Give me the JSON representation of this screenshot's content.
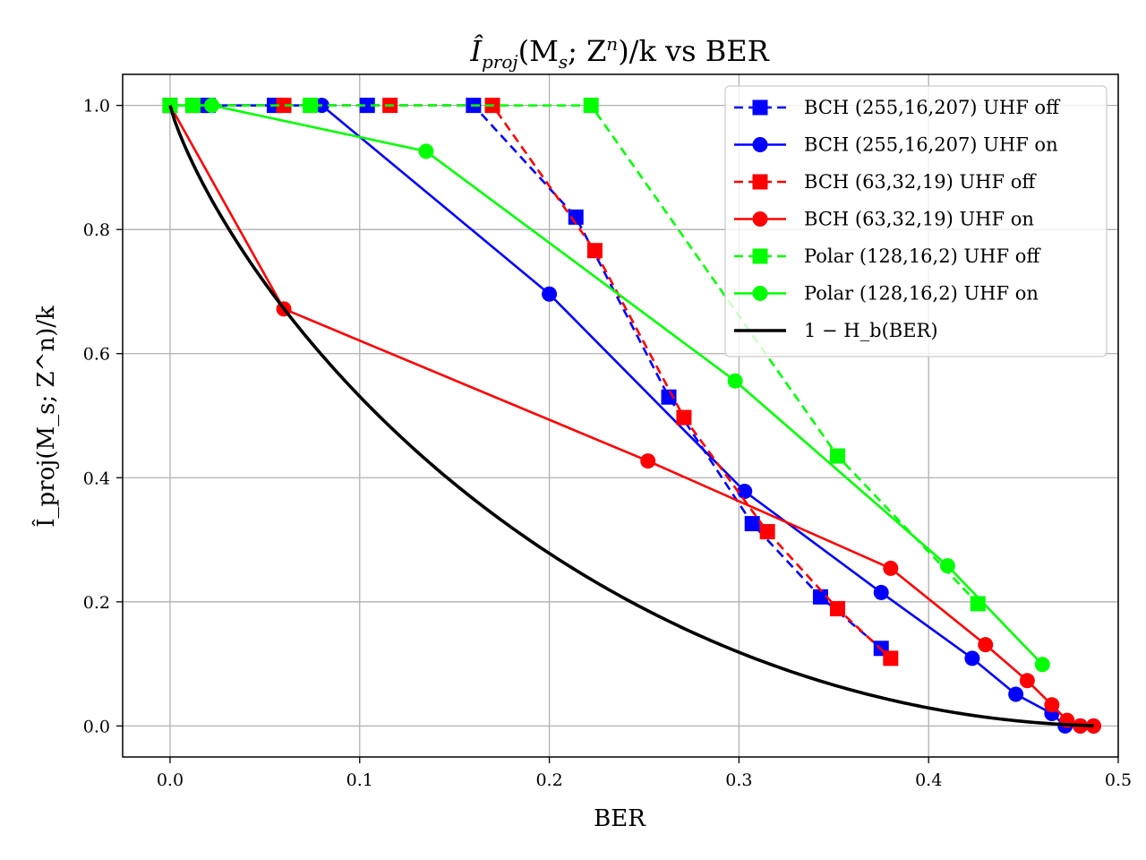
{
  "chart_data": {
    "type": "line",
    "title": "Î_proj(M_s; Z^n)/k vs BER",
    "title_parts": {
      "symbol": "Î",
      "sub": "proj",
      "args": "(M",
      "args_sub": "s",
      "args_mid": "; Z",
      "args_sup": "n",
      "args_end": ")/k",
      "suffix": " vs BER"
    },
    "xlabel": "BER",
    "ylabel": "Î_proj(M_s; Z^n)/k",
    "xlim": [
      -0.025,
      0.5
    ],
    "ylim": [
      -0.05,
      1.05
    ],
    "xticks": [
      0.0,
      0.1,
      0.2,
      0.3,
      0.4,
      0.5
    ],
    "yticks": [
      0.0,
      0.2,
      0.4,
      0.6,
      0.8,
      1.0
    ],
    "xtick_labels": [
      "0.0",
      "0.1",
      "0.2",
      "0.3",
      "0.4",
      "0.5"
    ],
    "ytick_labels": [
      "0.0",
      "0.2",
      "0.4",
      "0.6",
      "0.8",
      "1.0"
    ],
    "grid": true,
    "legend_position": "top-right",
    "series": [
      {
        "name": "BCH (255,16,207) UHF off",
        "color": "#0000ff",
        "dashed": true,
        "marker": "square",
        "points": [
          [
            0.0,
            1.0
          ],
          [
            0.02,
            1.0
          ],
          [
            0.055,
            1.0
          ],
          [
            0.104,
            1.0
          ],
          [
            0.16,
            1.0
          ],
          [
            0.214,
            0.82
          ],
          [
            0.263,
            0.53
          ],
          [
            0.307,
            0.326
          ],
          [
            0.343,
            0.208
          ],
          [
            0.375,
            0.125
          ]
        ]
      },
      {
        "name": "BCH (255,16,207) UHF on",
        "color": "#0000ff",
        "dashed": false,
        "marker": "circle",
        "points": [
          [
            0.0,
            1.0
          ],
          [
            0.018,
            1.0
          ],
          [
            0.08,
            1.0
          ],
          [
            0.2,
            0.696
          ],
          [
            0.303,
            0.378
          ],
          [
            0.375,
            0.215
          ],
          [
            0.423,
            0.109
          ],
          [
            0.446,
            0.051
          ],
          [
            0.465,
            0.02
          ],
          [
            0.472,
            0.0
          ],
          [
            0.48,
            0.0
          ],
          [
            0.487,
            0.0
          ]
        ]
      },
      {
        "name": "BCH (63,32,19) UHF off",
        "color": "#ff0000",
        "dashed": true,
        "marker": "square",
        "points": [
          [
            0.0,
            1.0
          ],
          [
            0.012,
            1.0
          ],
          [
            0.06,
            1.0
          ],
          [
            0.116,
            1.0
          ],
          [
            0.17,
            1.0
          ],
          [
            0.224,
            0.766
          ],
          [
            0.271,
            0.497
          ],
          [
            0.315,
            0.313
          ],
          [
            0.352,
            0.189
          ],
          [
            0.38,
            0.109
          ]
        ]
      },
      {
        "name": "BCH (63,32,19) UHF on",
        "color": "#ff0000",
        "dashed": false,
        "marker": "circle",
        "points": [
          [
            0.0,
            1.0
          ],
          [
            0.06,
            0.672
          ],
          [
            0.252,
            0.427
          ],
          [
            0.38,
            0.254
          ],
          [
            0.43,
            0.131
          ],
          [
            0.452,
            0.073
          ],
          [
            0.465,
            0.034
          ],
          [
            0.473,
            0.009
          ],
          [
            0.48,
            0.0
          ],
          [
            0.487,
            0.0
          ]
        ]
      },
      {
        "name": "Polar (128,16,2) UHF off",
        "color": "#00ff00",
        "dashed": true,
        "marker": "square",
        "points": [
          [
            0.0,
            1.0
          ],
          [
            0.012,
            1.0
          ],
          [
            0.074,
            1.0
          ],
          [
            0.222,
            1.0
          ],
          [
            0.352,
            0.435
          ],
          [
            0.426,
            0.197
          ]
        ]
      },
      {
        "name": "Polar (128,16,2) UHF on",
        "color": "#00ff00",
        "dashed": false,
        "marker": "circle",
        "points": [
          [
            0.0,
            1.0
          ],
          [
            0.022,
            1.0
          ],
          [
            0.135,
            0.926
          ],
          [
            0.298,
            0.556
          ],
          [
            0.41,
            0.258
          ],
          [
            0.46,
            0.099
          ]
        ]
      },
      {
        "name": "1 − H_b(BER)",
        "color": "#000000",
        "dashed": false,
        "marker": "none",
        "function": "1-binary-entropy",
        "x_range": [
          0.0,
          0.487
        ]
      }
    ]
  }
}
